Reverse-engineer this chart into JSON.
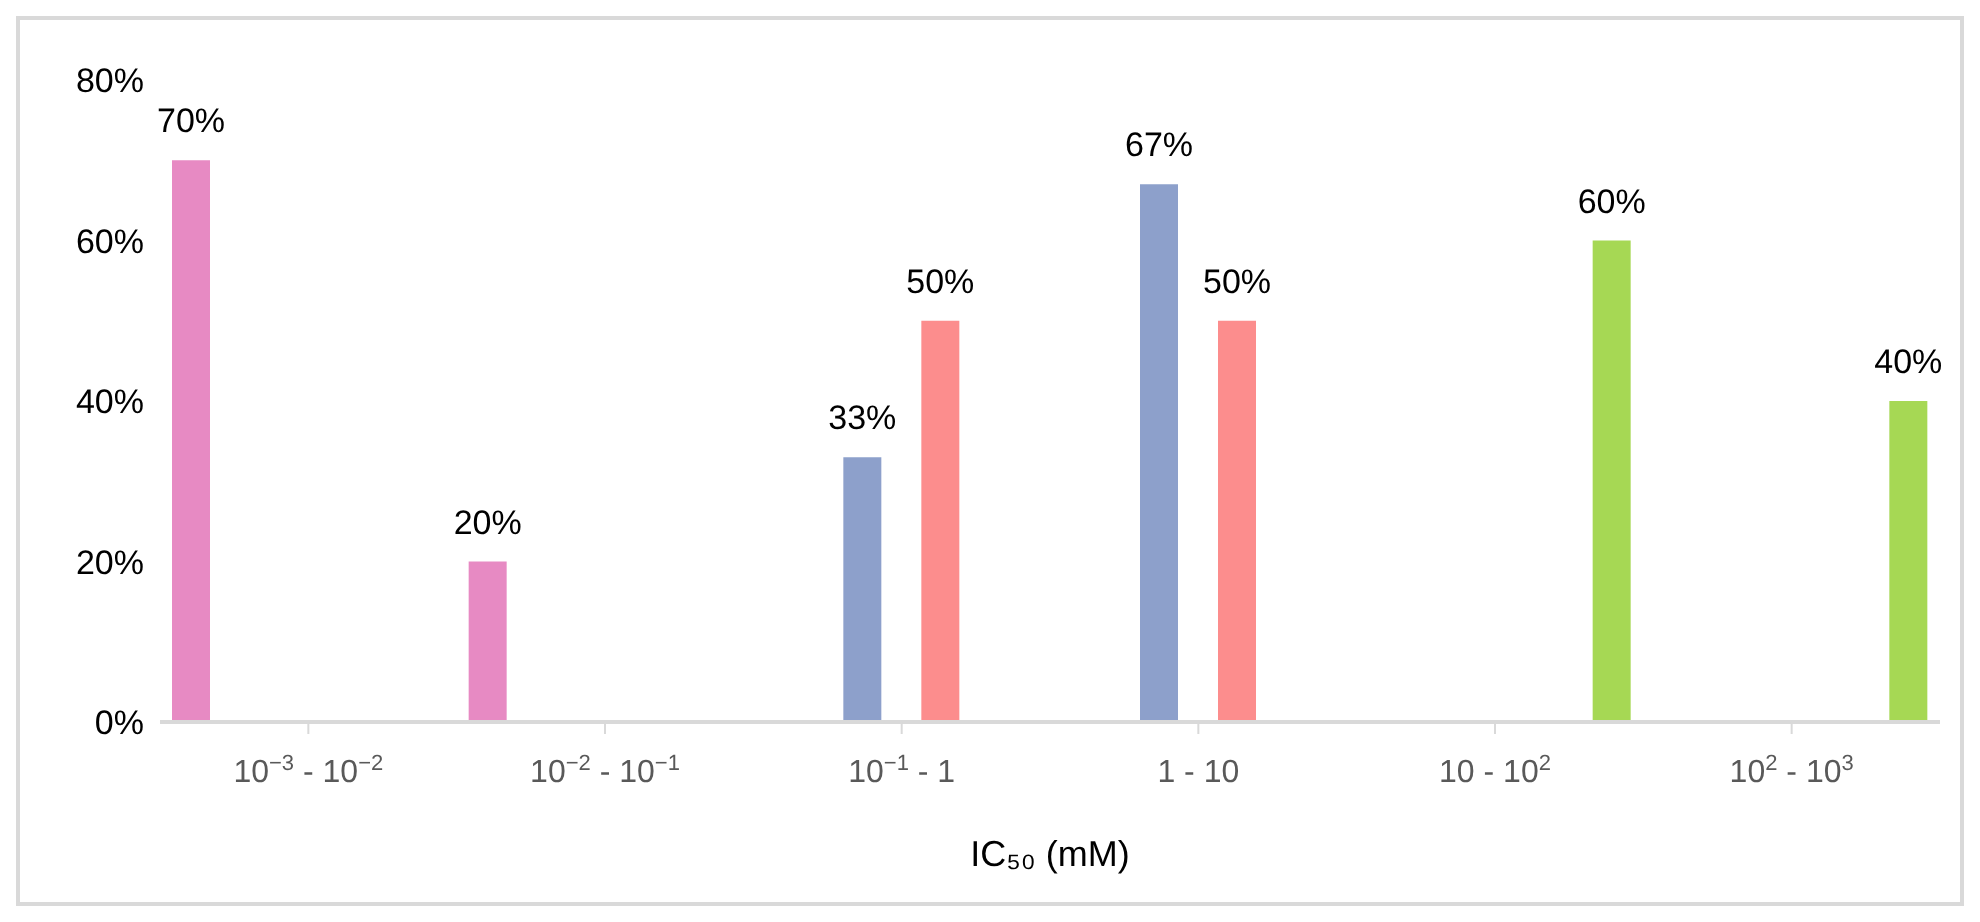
{
  "chart_data": {
    "type": "bar",
    "xlabel": "IC₅₀ (mM)",
    "categories": [
      "10$^{−3}$ - 10$^{−2}$",
      "10$^{−2}$ - 10$^{−1}$",
      "10$^{−1}$ - 1",
      "1 - 10",
      "10 - 10$^{2}$",
      "10$^{2}$ - 10$^{3}$"
    ],
    "series": [
      {
        "color": "#e78ac3",
        "values": [
          70,
          20,
          null,
          null,
          null,
          null
        ],
        "value_labels": [
          "70%",
          "20%",
          null,
          null,
          null,
          null
        ]
      },
      {
        "color": "#8da0cb",
        "values": [
          null,
          null,
          33,
          67,
          null,
          null
        ],
        "value_labels": [
          null,
          null,
          "33%",
          "67%",
          null,
          null
        ]
      },
      {
        "color": "#fc8d8d",
        "values": [
          null,
          null,
          50,
          50,
          null,
          null
        ],
        "value_labels": [
          null,
          null,
          "50%",
          "50%",
          null,
          null
        ]
      },
      {
        "color": "#a6d854",
        "values": [
          null,
          null,
          null,
          null,
          60,
          40
        ],
        "value_labels": [
          null,
          null,
          null,
          null,
          "60%",
          "40%"
        ]
      }
    ],
    "ylim": [
      0,
      80
    ],
    "yticks": [
      {
        "value": 0,
        "label": "0%"
      },
      {
        "value": 20,
        "label": "20%"
      },
      {
        "value": 40,
        "label": "40%"
      },
      {
        "value": 60,
        "label": "60%"
      },
      {
        "value": 80,
        "label": "80%"
      }
    ],
    "grid": false,
    "legend": false
  }
}
